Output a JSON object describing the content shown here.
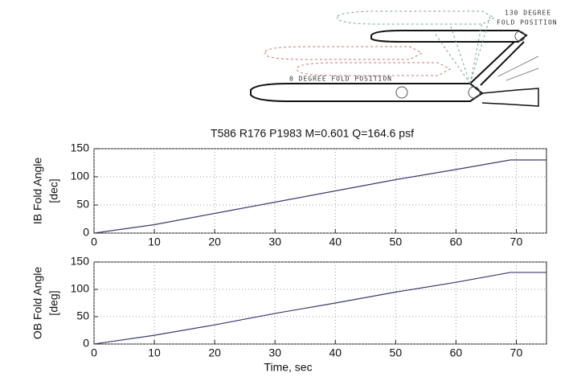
{
  "diagram": {
    "label_130_line1": "130 DEGREE",
    "label_130_line2": "FOLD POSITION",
    "label_0": "0 DEGREE FOLD POSITION"
  },
  "chart_data": [
    {
      "type": "line",
      "title": "T586 R176 P1983 M=0.601 Q=164.6 psf",
      "ylabel": "IB Fold Angle",
      "ylabel_unit": "[dec]",
      "x": [
        0,
        10,
        20,
        30,
        40,
        50,
        60,
        69,
        75
      ],
      "series": [
        {
          "color": "#3a3a70",
          "values": [
            0,
            15,
            35,
            55,
            75,
            95,
            113,
            130,
            130
          ]
        }
      ],
      "xlim": [
        0,
        75
      ],
      "ylim": [
        0,
        150
      ],
      "xticks": [
        0,
        10,
        20,
        30,
        40,
        50,
        60,
        70
      ],
      "yticks": [
        0,
        50,
        100,
        150
      ],
      "grid": true
    },
    {
      "type": "line",
      "ylabel": "OB Fold Angle",
      "ylabel_unit": "[deg]",
      "xlabel": "Time, sec",
      "x": [
        0,
        10,
        20,
        30,
        40,
        50,
        60,
        69,
        75
      ],
      "series": [
        {
          "color": "#3a3a70",
          "values": [
            0,
            16,
            35,
            56,
            75,
            95,
            113,
            131,
            131
          ]
        }
      ],
      "xlim": [
        0,
        75
      ],
      "ylim": [
        0,
        150
      ],
      "xticks": [
        0,
        10,
        20,
        30,
        40,
        50,
        60,
        70
      ],
      "yticks": [
        0,
        50,
        100,
        150
      ],
      "grid": true
    }
  ]
}
